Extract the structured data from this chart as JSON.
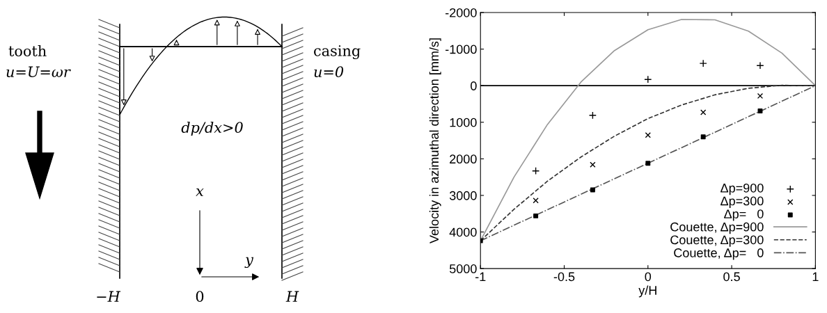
{
  "chart_data": [
    {
      "type": "other",
      "annotations": [
        "tooth",
        "u=U=ωr",
        "casing",
        "u=0",
        "dp/dx>0",
        "x",
        "y",
        "−H",
        "0",
        "H"
      ]
    },
    {
      "type": "scatter",
      "xlabel": "y/H",
      "ylabel": "Velocity in azimuthal direction [mm/s]",
      "xlim": [
        -1,
        1
      ],
      "ylim": [
        5000,
        -2000
      ],
      "xticks": [
        -1,
        -0.5,
        0,
        0.5,
        1
      ],
      "yticks": [
        -2000,
        -1000,
        0,
        1000,
        2000,
        3000,
        4000,
        5000
      ],
      "grid": false,
      "legend": "bottom right",
      "ref_lines": [
        {
          "axis": "y",
          "value": 0,
          "color": "#000000",
          "line_style": "solid"
        }
      ],
      "series": [
        {
          "name": "Δp=900",
          "type": "scatter",
          "color": "#000000",
          "x": [
            -0.67,
            -0.33,
            0,
            0.33,
            0.67
          ],
          "values": [
            2330,
            810,
            -170,
            -610,
            -550
          ]
        },
        {
          "name": "Δp=300",
          "type": "scatter",
          "color": "#000000",
          "x": [
            -0.67,
            -0.33,
            0,
            0.33,
            0.67
          ],
          "values": [
            3140,
            2160,
            1350,
            730,
            280
          ]
        },
        {
          "name": "Δp=   0",
          "type": "scatter",
          "color": "#000000",
          "x": [
            -1,
            -0.67,
            -0.33,
            0,
            0.33,
            0.67
          ],
          "values": [
            4240,
            3560,
            2850,
            2120,
            1400,
            690
          ]
        },
        {
          "name": "Couette, Δp=900",
          "type": "line",
          "line_style": "solid",
          "color": "#999999",
          "x": [
            -1,
            -0.8,
            -0.6,
            -0.4,
            -0.2,
            0,
            0.2,
            0.4,
            0.6,
            0.8,
            1
          ],
          "values": [
            4240,
            2500,
            1060,
            -100,
            -960,
            -1530,
            -1810,
            -1800,
            -1490,
            -890,
            0
          ]
        },
        {
          "name": "Couette, Δp=300",
          "type": "line",
          "line_style": "dashed",
          "color": "#333333",
          "x": [
            -1,
            -0.8,
            -0.6,
            -0.4,
            -0.2,
            0,
            0.2,
            0.4,
            0.6,
            0.8,
            1
          ],
          "values": [
            4240,
            3380,
            2610,
            1950,
            1380,
            900,
            530,
            250,
            70,
            -10,
            0
          ]
        },
        {
          "name": "Couette, Δp=   0",
          "type": "line",
          "line_style": "dashdot",
          "color": "#555555",
          "x": [
            -1,
            1
          ],
          "values": [
            4240,
            0
          ]
        }
      ]
    }
  ]
}
